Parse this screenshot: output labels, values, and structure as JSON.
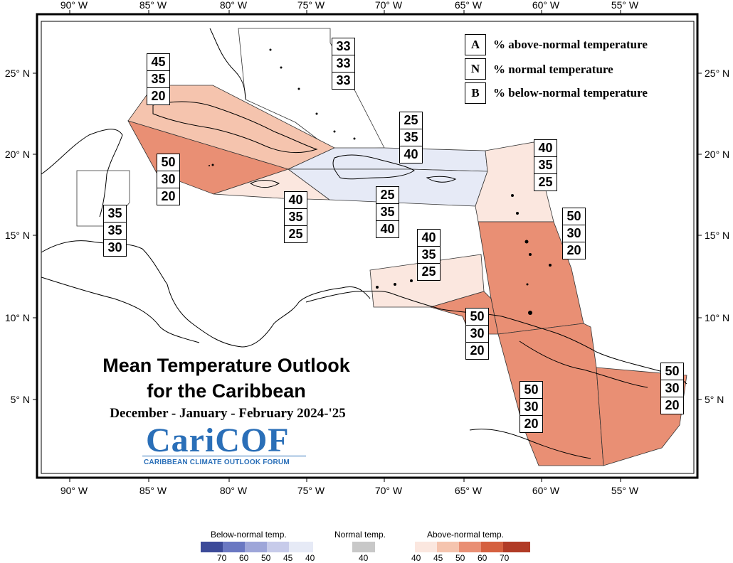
{
  "map": {
    "title_line1": "Mean Temperature Outlook",
    "title_line2": "for the Caribbean",
    "subtitle": "December - January - February 2024-'25",
    "logo_text": "CariCOF",
    "logo_subtitle": "CARIBBEAN CLIMATE OUTLOOK FORUM",
    "lon_ticks": [
      "90° W",
      "85° W",
      "80° W",
      "75° W",
      "70° W",
      "65° W",
      "60° W",
      "55° W"
    ],
    "lat_ticks": [
      "25° N",
      "20° N",
      "15° N",
      "10° N",
      "5° N"
    ],
    "key": [
      {
        "letter": "A",
        "text": "% above-normal temperature"
      },
      {
        "letter": "N",
        "text": "% normal temperature"
      },
      {
        "letter": "B",
        "text": "% below-normal temperature"
      }
    ],
    "regions": [
      {
        "name": "bahamas",
        "probs": [
          "33",
          "33",
          "33"
        ],
        "color": "#ffffff"
      },
      {
        "name": "cuba",
        "probs": [
          "45",
          "35",
          "20"
        ],
        "color": "#f5c4ae"
      },
      {
        "name": "cayman-jamaica-west",
        "probs": [
          "50",
          "30",
          "20"
        ],
        "color": "#e98f74"
      },
      {
        "name": "jamaica",
        "probs": [
          "40",
          "35",
          "25"
        ],
        "color": "#fbe7df"
      },
      {
        "name": "hispaniola-north",
        "probs": [
          "25",
          "35",
          "40"
        ],
        "color": "#e6eaf6"
      },
      {
        "name": "hispaniola-puerto-rico",
        "probs": [
          "25",
          "35",
          "40"
        ],
        "color": "#e6eaf6"
      },
      {
        "name": "leeward-islands",
        "probs": [
          "40",
          "35",
          "25"
        ],
        "color": "#fbe7df"
      },
      {
        "name": "windward-islands",
        "probs": [
          "50",
          "30",
          "20"
        ],
        "color": "#e98f74"
      },
      {
        "name": "abc-islands",
        "probs": [
          "40",
          "35",
          "25"
        ],
        "color": "#fbe7df"
      },
      {
        "name": "trinidad",
        "probs": [
          "50",
          "30",
          "20"
        ],
        "color": "#e98f74"
      },
      {
        "name": "guyana",
        "probs": [
          "50",
          "30",
          "20"
        ],
        "color": "#e98f74"
      },
      {
        "name": "suriname-french-guiana",
        "probs": [
          "50",
          "30",
          "20"
        ],
        "color": "#e98f74"
      },
      {
        "name": "belize",
        "probs": [
          "35",
          "35",
          "30"
        ],
        "color": "#ffffff"
      }
    ]
  },
  "scale": {
    "below_title": "Below-normal temp.",
    "normal_title": "Normal temp.",
    "above_title": "Above-normal temp.",
    "below_labels": [
      "70",
      "60",
      "50",
      "45",
      "40"
    ],
    "normal_label": "40",
    "above_labels": [
      "40",
      "45",
      "50",
      "60",
      "70"
    ],
    "below_colors": [
      "#3c4a99",
      "#6a78c2",
      "#9ea6d9",
      "#c7cbea",
      "#e6eaf6"
    ],
    "normal_color": "#c8c8c8",
    "above_colors": [
      "#fbe7df",
      "#f5c4ae",
      "#e98f74",
      "#d5603f",
      "#b13b26"
    ]
  }
}
